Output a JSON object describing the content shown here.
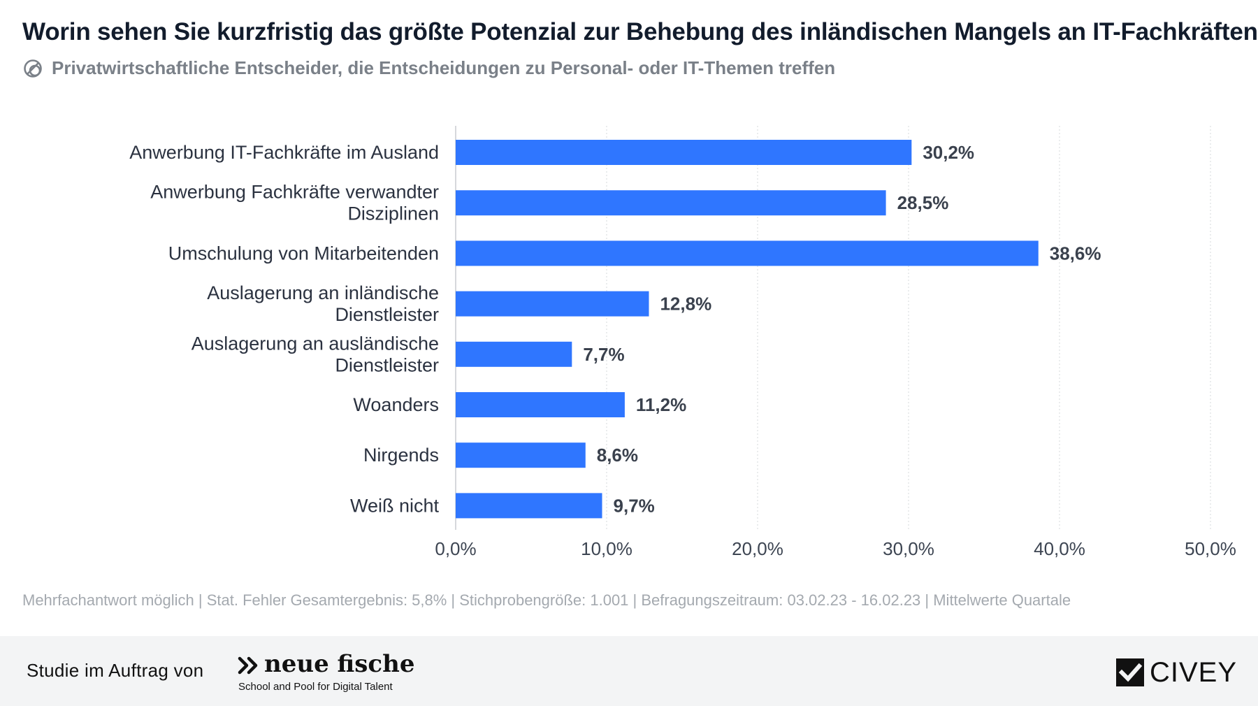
{
  "header": {
    "title": "Worin sehen Sie kurzfristig das größte Potenzial zur Behebung des inländischen Mangels an IT-Fachkräften?",
    "subtitle": "Privatwirtschaftliche Entscheider, die Entscheidungen zu Personal- oder IT-Themen treffen",
    "subtitle_icon": "population-icon"
  },
  "chart_data": {
    "type": "bar",
    "orientation": "horizontal",
    "categories": [
      "Anwerbung IT-Fachkräfte im Ausland",
      "Anwerbung Fachkräfte verwandter Disziplinen",
      "Umschulung von Mitarbeitenden",
      "Auslagerung an inländische Dienstleister",
      "Auslagerung an ausländische Dienstleister",
      "Woanders",
      "Nirgends",
      "Weiß nicht"
    ],
    "values": [
      30.2,
      28.5,
      38.6,
      12.8,
      7.7,
      11.2,
      8.6,
      9.7
    ],
    "value_labels": [
      "30,2%",
      "28,5%",
      "38,6%",
      "12,8%",
      "7,7%",
      "11,2%",
      "8,6%",
      "9,7%"
    ],
    "xlim": [
      0,
      50
    ],
    "ticks": [
      0,
      10,
      20,
      30,
      40,
      50
    ],
    "tick_labels": [
      "0,0%",
      "10,0%",
      "20,0%",
      "30,0%",
      "40,0%",
      "50,0%"
    ],
    "grid": true,
    "bar_color": "#2f76ff"
  },
  "footnote": "Mehrfachantwort möglich | Stat. Fehler Gesamtergebnis: 5,8% | Stichprobengröße: 1.001 | Befragungszeitraum: 03.02.23 - 16.02.23 | Mittelwerte Quartale",
  "footer": {
    "sponsor_text": "Studie im Auftrag von",
    "sponsor_name": "neue fische",
    "sponsor_tagline": "School and Pool for Digital Talent",
    "sponsor_icon": "double-chevron-icon",
    "brand_name": "CIVEY",
    "brand_icon": "civey-logo-icon"
  }
}
